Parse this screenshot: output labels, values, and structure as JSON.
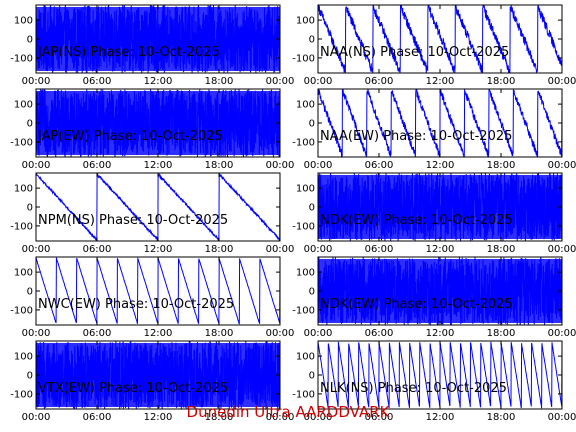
{
  "footer": "Dunedin Ultra AARDDVARK",
  "colors": {
    "trace": "#0000ff",
    "axis": "#000000",
    "footer": "#cc0000"
  },
  "chart_data": [
    {
      "type": "line",
      "title": "JAP(NS) Phase: 10-Oct-2025",
      "x_ticks": [
        "00:00",
        "06:00",
        "12:00",
        "18:00",
        "00:00"
      ],
      "y_ticks": [
        "100",
        "0",
        "-100"
      ],
      "xlim": [
        0,
        24
      ],
      "ylim": [
        -180,
        180
      ],
      "series": [
        {
          "shape": "noise",
          "spans": [
            [
              0,
              24
            ]
          ]
        }
      ],
      "grid": false
    },
    {
      "type": "line",
      "title": "NAA(NS) Phase: 10-Oct-2025",
      "x_ticks": [
        "00:00",
        "06:00",
        "12:00",
        "18:00",
        "00:00"
      ],
      "y_ticks": [
        "100",
        "0",
        "-100"
      ],
      "xlim": [
        0,
        24
      ],
      "ylim": [
        -180,
        180
      ],
      "series": [
        {
          "shape": "sawtooth-down",
          "period_h": 2.7,
          "noise": 25
        }
      ],
      "grid": false
    },
    {
      "type": "line",
      "title": "JAP(EW) Phase: 10-Oct-2025",
      "x_ticks": [
        "00:00",
        "06:00",
        "12:00",
        "18:00",
        "00:00"
      ],
      "y_ticks": [
        "100",
        "0",
        "-100"
      ],
      "xlim": [
        0,
        24
      ],
      "ylim": [
        -180,
        180
      ],
      "series": [
        {
          "shape": "noise",
          "spans": [
            [
              0,
              24
            ]
          ]
        }
      ],
      "grid": false
    },
    {
      "type": "line",
      "title": "NAA(EW) Phase: 10-Oct-2025",
      "x_ticks": [
        "00:00",
        "06:00",
        "12:00",
        "18:00",
        "00:00"
      ],
      "y_ticks": [
        "100",
        "0",
        "-100"
      ],
      "xlim": [
        0,
        24
      ],
      "ylim": [
        -180,
        180
      ],
      "series": [
        {
          "shape": "sawtooth-down",
          "period_h": 2.4,
          "noise": 20
        }
      ],
      "grid": false
    },
    {
      "type": "line",
      "title": "NPM(NS) Phase: 10-Oct-2025",
      "x_ticks": [
        "00:00",
        "06:00",
        "12:00",
        "18:00",
        "00:00"
      ],
      "y_ticks": [
        "100",
        "0",
        "-100"
      ],
      "xlim": [
        0,
        24
      ],
      "ylim": [
        -180,
        180
      ],
      "series": [
        {
          "shape": "sawtooth-down",
          "period_h": 6.0,
          "noise": 6
        }
      ],
      "grid": false
    },
    {
      "type": "line",
      "title": "NDK(EW) Phase: 10-Oct-2025",
      "x_ticks": [
        "00:00",
        "06:00",
        "12:00",
        "18:00",
        "00:00"
      ],
      "y_ticks": [
        "100",
        "0",
        "-100"
      ],
      "xlim": [
        0,
        24
      ],
      "ylim": [
        -180,
        180
      ],
      "series": [
        {
          "shape": "noise",
          "spans": [
            [
              0,
              24
            ]
          ]
        }
      ],
      "grid": false
    },
    {
      "type": "line",
      "title": "NWC(EW) Phase: 10-Oct-2025",
      "x_ticks": [
        "00:00",
        "06:00",
        "12:00",
        "18:00",
        "00:00"
      ],
      "y_ticks": [
        "100",
        "0",
        "-100"
      ],
      "xlim": [
        0,
        24
      ],
      "ylim": [
        -180,
        180
      ],
      "series": [
        {
          "shape": "sawtooth-down",
          "period_h": 2.0,
          "noise": 2
        }
      ],
      "grid": false
    },
    {
      "type": "line",
      "title": "NDK(EW) Phase: 10-Oct-2025",
      "x_ticks": [
        "00:00",
        "06:00",
        "12:00",
        "18:00",
        "00:00"
      ],
      "y_ticks": [
        "100",
        "0",
        "-100"
      ],
      "xlim": [
        0,
        24
      ],
      "ylim": [
        -180,
        180
      ],
      "series": [
        {
          "shape": "noise",
          "spans": [
            [
              0,
              24
            ]
          ]
        }
      ],
      "grid": false
    },
    {
      "type": "line",
      "title": "VTX(EW) Phase: 10-Oct-2025",
      "x_ticks": [
        "00:00",
        "06:00",
        "12:00",
        "18:00",
        "00:00"
      ],
      "y_ticks": [
        "100",
        "0",
        "-100"
      ],
      "xlim": [
        0,
        24
      ],
      "ylim": [
        -180,
        180
      ],
      "series": [
        {
          "shape": "noise",
          "spans": [
            [
              0,
              24
            ]
          ]
        }
      ],
      "grid": false
    },
    {
      "type": "line",
      "title": "NLK(NS) Phase: 10-Oct-2025",
      "x_ticks": [
        "00:00",
        "06:00",
        "12:00",
        "18:00",
        "00:00"
      ],
      "y_ticks": [
        "100",
        "0",
        "-100"
      ],
      "xlim": [
        0,
        24
      ],
      "ylim": [
        -180,
        180
      ],
      "series": [
        {
          "shape": "sawtooth-down",
          "period_h": 1.0,
          "noise": 3
        }
      ],
      "grid": false
    }
  ]
}
